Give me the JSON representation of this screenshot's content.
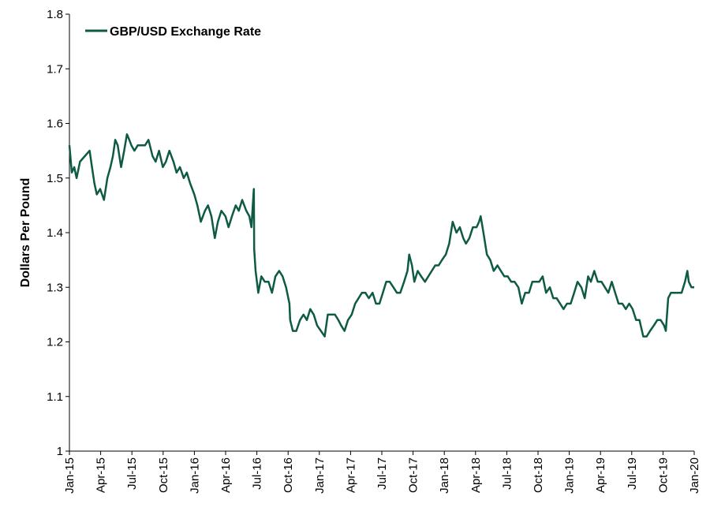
{
  "chart_data": {
    "type": "line",
    "ylabel": "Dollars Per Pound",
    "ylim": [
      1,
      1.8
    ],
    "yticks": [
      1,
      1.1,
      1.2,
      1.3,
      1.4,
      1.5,
      1.6,
      1.7,
      1.8
    ],
    "ytick_labels": [
      "1",
      "1.1",
      "1.2",
      "1.3",
      "1.4",
      "1.5",
      "1.6",
      "1.7",
      "1.8"
    ],
    "xlim": [
      "2015-01-01",
      "2020-01-01"
    ],
    "xtick_labels": [
      "Jan-15",
      "Apr-15",
      "Jul-15",
      "Oct-15",
      "Jan-16",
      "Apr-16",
      "Jul-16",
      "Oct-16",
      "Jan-17",
      "Apr-17",
      "Jul-17",
      "Oct-17",
      "Jan-18",
      "Apr-18",
      "Jul-18",
      "Oct-18",
      "Jan-19",
      "Apr-19",
      "Jul-19",
      "Oct-19",
      "Jan-20"
    ],
    "legend_position": "top-left",
    "grid": false,
    "line_color": "#0e5a45",
    "series": [
      {
        "name": "GBP/USD Exchange Rate",
        "points": [
          [
            "2015-01-01",
            1.56
          ],
          [
            "2015-01-08",
            1.51
          ],
          [
            "2015-01-15",
            1.52
          ],
          [
            "2015-01-22",
            1.5
          ],
          [
            "2015-02-01",
            1.53
          ],
          [
            "2015-02-15",
            1.54
          ],
          [
            "2015-03-01",
            1.55
          ],
          [
            "2015-03-08",
            1.52
          ],
          [
            "2015-03-15",
            1.49
          ],
          [
            "2015-03-22",
            1.47
          ],
          [
            "2015-04-01",
            1.48
          ],
          [
            "2015-04-12",
            1.46
          ],
          [
            "2015-04-22",
            1.5
          ],
          [
            "2015-05-01",
            1.52
          ],
          [
            "2015-05-08",
            1.54
          ],
          [
            "2015-05-15",
            1.57
          ],
          [
            "2015-05-22",
            1.56
          ],
          [
            "2015-06-01",
            1.52
          ],
          [
            "2015-06-10",
            1.55
          ],
          [
            "2015-06-18",
            1.58
          ],
          [
            "2015-06-25",
            1.57
          ],
          [
            "2015-07-01",
            1.56
          ],
          [
            "2015-07-10",
            1.55
          ],
          [
            "2015-07-20",
            1.56
          ],
          [
            "2015-08-01",
            1.56
          ],
          [
            "2015-08-10",
            1.56
          ],
          [
            "2015-08-20",
            1.57
          ],
          [
            "2015-09-01",
            1.54
          ],
          [
            "2015-09-10",
            1.53
          ],
          [
            "2015-09-20",
            1.55
          ],
          [
            "2015-10-01",
            1.52
          ],
          [
            "2015-10-10",
            1.53
          ],
          [
            "2015-10-20",
            1.55
          ],
          [
            "2015-11-01",
            1.53
          ],
          [
            "2015-11-10",
            1.51
          ],
          [
            "2015-11-20",
            1.52
          ],
          [
            "2015-12-01",
            1.5
          ],
          [
            "2015-12-10",
            1.51
          ],
          [
            "2015-12-20",
            1.49
          ],
          [
            "2016-01-01",
            1.47
          ],
          [
            "2016-01-10",
            1.45
          ],
          [
            "2016-01-20",
            1.42
          ],
          [
            "2016-02-01",
            1.44
          ],
          [
            "2016-02-10",
            1.45
          ],
          [
            "2016-02-20",
            1.43
          ],
          [
            "2016-03-01",
            1.39
          ],
          [
            "2016-03-10",
            1.42
          ],
          [
            "2016-03-20",
            1.44
          ],
          [
            "2016-04-01",
            1.43
          ],
          [
            "2016-04-10",
            1.41
          ],
          [
            "2016-04-20",
            1.43
          ],
          [
            "2016-05-01",
            1.45
          ],
          [
            "2016-05-10",
            1.44
          ],
          [
            "2016-05-20",
            1.46
          ],
          [
            "2016-06-01",
            1.44
          ],
          [
            "2016-06-10",
            1.43
          ],
          [
            "2016-06-16",
            1.41
          ],
          [
            "2016-06-22",
            1.47
          ],
          [
            "2016-06-23",
            1.48
          ],
          [
            "2016-06-24",
            1.37
          ],
          [
            "2016-06-28",
            1.33
          ],
          [
            "2016-07-06",
            1.29
          ],
          [
            "2016-07-15",
            1.32
          ],
          [
            "2016-07-25",
            1.31
          ],
          [
            "2016-08-05",
            1.31
          ],
          [
            "2016-08-15",
            1.29
          ],
          [
            "2016-08-25",
            1.32
          ],
          [
            "2016-09-05",
            1.33
          ],
          [
            "2016-09-15",
            1.32
          ],
          [
            "2016-09-25",
            1.3
          ],
          [
            "2016-10-05",
            1.27
          ],
          [
            "2016-10-07",
            1.24
          ],
          [
            "2016-10-15",
            1.22
          ],
          [
            "2016-10-25",
            1.22
          ],
          [
            "2016-11-05",
            1.24
          ],
          [
            "2016-11-15",
            1.25
          ],
          [
            "2016-11-25",
            1.24
          ],
          [
            "2016-12-05",
            1.26
          ],
          [
            "2016-12-15",
            1.25
          ],
          [
            "2016-12-25",
            1.23
          ],
          [
            "2017-01-05",
            1.22
          ],
          [
            "2017-01-16",
            1.21
          ],
          [
            "2017-01-25",
            1.25
          ],
          [
            "2017-02-05",
            1.25
          ],
          [
            "2017-02-15",
            1.25
          ],
          [
            "2017-02-25",
            1.24
          ],
          [
            "2017-03-05",
            1.23
          ],
          [
            "2017-03-15",
            1.22
          ],
          [
            "2017-03-25",
            1.24
          ],
          [
            "2017-04-05",
            1.25
          ],
          [
            "2017-04-15",
            1.27
          ],
          [
            "2017-04-25",
            1.28
          ],
          [
            "2017-05-05",
            1.29
          ],
          [
            "2017-05-15",
            1.29
          ],
          [
            "2017-05-25",
            1.28
          ],
          [
            "2017-06-05",
            1.29
          ],
          [
            "2017-06-15",
            1.27
          ],
          [
            "2017-06-25",
            1.27
          ],
          [
            "2017-07-05",
            1.29
          ],
          [
            "2017-07-15",
            1.31
          ],
          [
            "2017-07-25",
            1.31
          ],
          [
            "2017-08-05",
            1.3
          ],
          [
            "2017-08-15",
            1.29
          ],
          [
            "2017-08-25",
            1.29
          ],
          [
            "2017-09-05",
            1.31
          ],
          [
            "2017-09-15",
            1.33
          ],
          [
            "2017-09-20",
            1.36
          ],
          [
            "2017-09-28",
            1.34
          ],
          [
            "2017-10-05",
            1.31
          ],
          [
            "2017-10-15",
            1.33
          ],
          [
            "2017-10-25",
            1.32
          ],
          [
            "2017-11-05",
            1.31
          ],
          [
            "2017-11-15",
            1.32
          ],
          [
            "2017-11-25",
            1.33
          ],
          [
            "2017-12-05",
            1.34
          ],
          [
            "2017-12-15",
            1.34
          ],
          [
            "2017-12-25",
            1.35
          ],
          [
            "2018-01-05",
            1.36
          ],
          [
            "2018-01-15",
            1.38
          ],
          [
            "2018-01-25",
            1.42
          ],
          [
            "2018-02-05",
            1.4
          ],
          [
            "2018-02-15",
            1.41
          ],
          [
            "2018-02-25",
            1.39
          ],
          [
            "2018-03-05",
            1.38
          ],
          [
            "2018-03-15",
            1.39
          ],
          [
            "2018-03-25",
            1.41
          ],
          [
            "2018-04-05",
            1.41
          ],
          [
            "2018-04-12",
            1.42
          ],
          [
            "2018-04-17",
            1.43
          ],
          [
            "2018-04-25",
            1.4
          ],
          [
            "2018-05-05",
            1.36
          ],
          [
            "2018-05-15",
            1.35
          ],
          [
            "2018-05-25",
            1.33
          ],
          [
            "2018-06-05",
            1.34
          ],
          [
            "2018-06-15",
            1.33
          ],
          [
            "2018-06-25",
            1.32
          ],
          [
            "2018-07-05",
            1.32
          ],
          [
            "2018-07-15",
            1.31
          ],
          [
            "2018-07-25",
            1.31
          ],
          [
            "2018-08-05",
            1.3
          ],
          [
            "2018-08-15",
            1.27
          ],
          [
            "2018-08-25",
            1.29
          ],
          [
            "2018-09-05",
            1.29
          ],
          [
            "2018-09-15",
            1.31
          ],
          [
            "2018-09-25",
            1.31
          ],
          [
            "2018-10-05",
            1.31
          ],
          [
            "2018-10-15",
            1.32
          ],
          [
            "2018-10-25",
            1.29
          ],
          [
            "2018-11-05",
            1.3
          ],
          [
            "2018-11-15",
            1.28
          ],
          [
            "2018-11-25",
            1.28
          ],
          [
            "2018-12-05",
            1.27
          ],
          [
            "2018-12-15",
            1.26
          ],
          [
            "2018-12-25",
            1.27
          ],
          [
            "2019-01-05",
            1.27
          ],
          [
            "2019-01-15",
            1.29
          ],
          [
            "2019-01-25",
            1.31
          ],
          [
            "2019-02-05",
            1.3
          ],
          [
            "2019-02-15",
            1.28
          ],
          [
            "2019-02-25",
            1.32
          ],
          [
            "2019-03-05",
            1.31
          ],
          [
            "2019-03-15",
            1.33
          ],
          [
            "2019-03-25",
            1.31
          ],
          [
            "2019-04-05",
            1.31
          ],
          [
            "2019-04-15",
            1.3
          ],
          [
            "2019-04-25",
            1.29
          ],
          [
            "2019-05-05",
            1.31
          ],
          [
            "2019-05-15",
            1.29
          ],
          [
            "2019-05-25",
            1.27
          ],
          [
            "2019-06-05",
            1.27
          ],
          [
            "2019-06-15",
            1.26
          ],
          [
            "2019-06-25",
            1.27
          ],
          [
            "2019-07-05",
            1.26
          ],
          [
            "2019-07-15",
            1.24
          ],
          [
            "2019-07-25",
            1.24
          ],
          [
            "2019-08-05",
            1.21
          ],
          [
            "2019-08-15",
            1.21
          ],
          [
            "2019-08-25",
            1.22
          ],
          [
            "2019-09-05",
            1.23
          ],
          [
            "2019-09-15",
            1.24
          ],
          [
            "2019-09-25",
            1.24
          ],
          [
            "2019-10-05",
            1.23
          ],
          [
            "2019-10-10",
            1.22
          ],
          [
            "2019-10-17",
            1.28
          ],
          [
            "2019-10-25",
            1.29
          ],
          [
            "2019-11-05",
            1.29
          ],
          [
            "2019-11-15",
            1.29
          ],
          [
            "2019-11-25",
            1.29
          ],
          [
            "2019-12-05",
            1.31
          ],
          [
            "2019-12-12",
            1.33
          ],
          [
            "2019-12-16",
            1.31
          ],
          [
            "2019-12-24",
            1.3
          ],
          [
            "2020-01-01",
            1.3
          ]
        ]
      }
    ]
  }
}
